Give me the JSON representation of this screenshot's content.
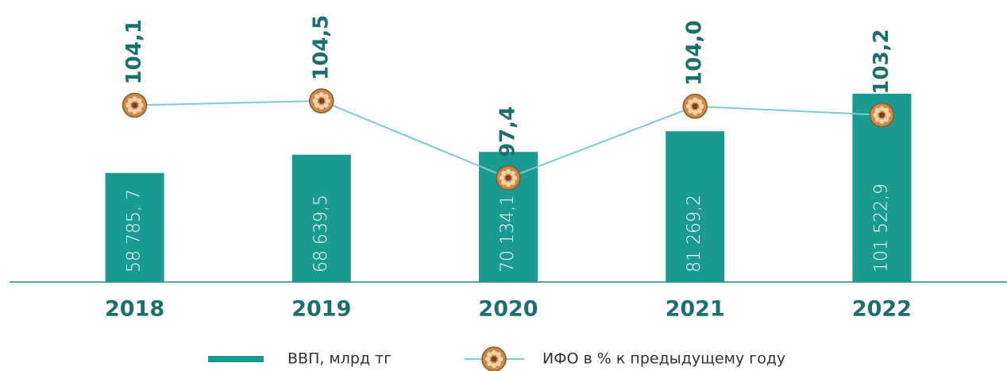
{
  "chart_data": {
    "type": "bar-line",
    "categories": [
      "2018",
      "2019",
      "2020",
      "2021",
      "2022"
    ],
    "series": [
      {
        "name": "ВВП, млрд тг",
        "type": "bar",
        "color": "#1a9a91",
        "values": [
          58785.7,
          68639.5,
          70134.1,
          81269.2,
          101522.9
        ],
        "value_labels": [
          "58 785, 7",
          "68 639,5",
          "70 134,1",
          "81 269,2",
          "101 522,9"
        ]
      },
      {
        "name": "ИФО в % к предыдущему году",
        "type": "line",
        "axis": "y2",
        "color": "#7ccbd3",
        "marker_color": "#c98a4a",
        "values": [
          104.1,
          104.5,
          97.4,
          104.0,
          103.2
        ],
        "value_labels": [
          "104,1",
          "104,5",
          "97,4",
          "104,0",
          "103,2"
        ]
      }
    ],
    "ylim": [
      0,
      152000
    ],
    "y2lim": [
      87.8,
      113.8
    ],
    "legend": "bottom"
  }
}
